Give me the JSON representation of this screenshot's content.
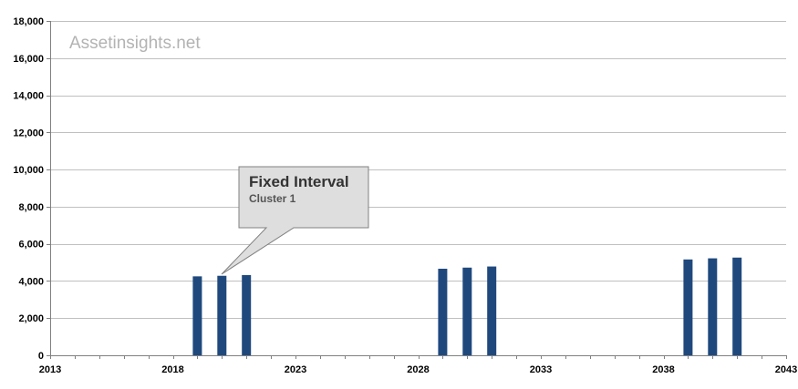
{
  "watermark": "Assetinsights.net",
  "callout": {
    "title": "Fixed Interval",
    "subtitle": "Cluster 1"
  },
  "colors": {
    "bar": "#1f497d",
    "grid": "#c0c0c0",
    "axis": "#808080",
    "callout_fill": "#dedede",
    "callout_border": "#808080"
  },
  "chart_data": {
    "type": "bar",
    "title": "",
    "xlabel": "",
    "ylabel": "",
    "xlim": [
      2013,
      2043
    ],
    "ylim": [
      0,
      18000
    ],
    "x_ticks": [
      2013,
      2018,
      2023,
      2028,
      2033,
      2038,
      2043
    ],
    "x_tick_labels": [
      "2013",
      "2018",
      "2023",
      "2028",
      "2033",
      "2038",
      "2043"
    ],
    "y_ticks": [
      0,
      2000,
      4000,
      6000,
      8000,
      10000,
      12000,
      14000,
      16000,
      18000
    ],
    "y_tick_labels": [
      "0",
      "2,000",
      "4,000",
      "6,000",
      "8,000",
      "10,000",
      "12,000",
      "14,000",
      "16,000",
      "18,000"
    ],
    "grid": "horizontal",
    "legend": "none",
    "series": [
      {
        "x": [
          2019,
          2020,
          2021,
          2029,
          2030,
          2031,
          2039,
          2040,
          2041
        ],
        "values": [
          4250,
          4280,
          4320,
          4660,
          4720,
          4780,
          5160,
          5220,
          5260
        ]
      }
    ]
  }
}
